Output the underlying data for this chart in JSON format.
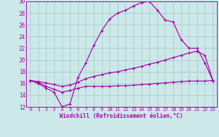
{
  "xlabel": "Windchill (Refroidissement éolien,°C)",
  "background_color": "#cce8e8",
  "grid_color": "#aacccc",
  "line_color": "#aa00aa",
  "xlim": [
    -0.5,
    23.5
  ],
  "ylim": [
    12,
    30
  ],
  "xticks": [
    0,
    1,
    2,
    3,
    4,
    5,
    6,
    7,
    8,
    9,
    10,
    11,
    12,
    13,
    14,
    15,
    16,
    17,
    18,
    19,
    20,
    21,
    22,
    23
  ],
  "yticks": [
    12,
    14,
    16,
    18,
    20,
    22,
    24,
    26,
    28,
    30
  ],
  "line1_x": [
    0,
    1,
    2,
    3,
    4,
    5,
    6,
    7,
    8,
    9,
    10,
    11,
    12,
    13,
    14,
    15,
    16,
    17,
    18,
    19,
    20,
    21,
    22,
    23
  ],
  "line1_y": [
    16.5,
    16.0,
    15.2,
    14.5,
    12.0,
    12.5,
    17.0,
    19.5,
    22.5,
    25.0,
    27.0,
    28.0,
    28.5,
    29.2,
    29.8,
    30.0,
    28.5,
    26.8,
    26.5,
    23.5,
    22.0,
    22.0,
    19.5,
    16.5
  ],
  "line2_x": [
    0,
    1,
    2,
    3,
    4,
    5,
    6,
    7,
    8,
    9,
    10,
    11,
    12,
    13,
    14,
    15,
    16,
    17,
    18,
    19,
    20,
    21,
    22,
    23
  ],
  "line2_y": [
    16.5,
    16.3,
    16.1,
    15.8,
    15.5,
    15.7,
    16.2,
    16.8,
    17.2,
    17.5,
    17.8,
    18.0,
    18.3,
    18.6,
    18.9,
    19.3,
    19.6,
    20.0,
    20.4,
    20.8,
    21.2,
    21.5,
    20.8,
    16.5
  ],
  "line3_x": [
    0,
    1,
    2,
    3,
    4,
    5,
    6,
    7,
    8,
    9,
    10,
    11,
    12,
    13,
    14,
    15,
    16,
    17,
    18,
    19,
    20,
    21,
    22,
    23
  ],
  "line3_y": [
    16.5,
    16.2,
    15.5,
    15.0,
    14.5,
    14.8,
    15.2,
    15.5,
    15.5,
    15.5,
    15.5,
    15.6,
    15.6,
    15.7,
    15.8,
    15.9,
    16.0,
    16.1,
    16.2,
    16.3,
    16.4,
    16.4,
    16.4,
    16.5
  ],
  "ylabel_fontsize": 5.5,
  "xlabel_fontsize": 5.8,
  "tick_fontsize": 5.0
}
